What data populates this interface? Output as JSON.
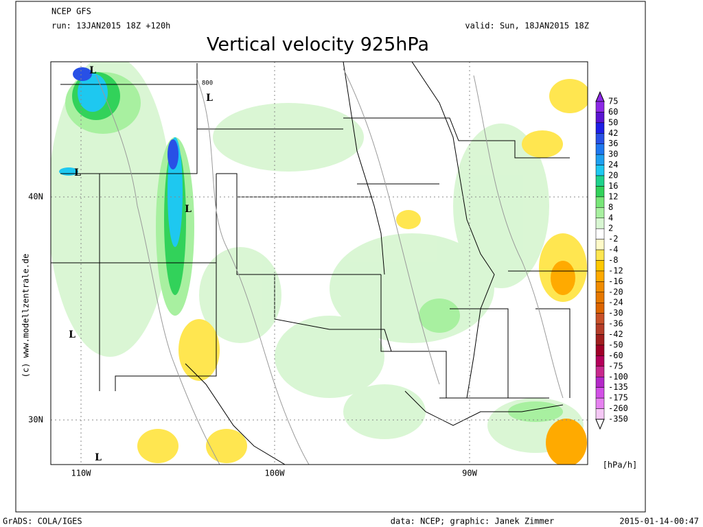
{
  "header": {
    "model": "NCEP GFS",
    "run": "run: 13JAN2015 18Z +120h",
    "valid": "valid: Sun, 18JAN2015 18Z",
    "title": "Vertical velocity 925hPa"
  },
  "map": {
    "lat_labels": [
      "40N",
      "30N"
    ],
    "lon_labels": [
      "110W",
      "100W",
      "90W"
    ],
    "low_markers": [
      "L",
      "L",
      "L",
      "L",
      "L",
      "L"
    ],
    "contour_label": "800",
    "credit": "(c) www.modellzentrale.de"
  },
  "colorbar": {
    "levels": [
      75,
      60,
      50,
      42,
      36,
      30,
      24,
      20,
      16,
      12,
      8,
      4,
      2,
      -2,
      -4,
      -8,
      -12,
      -16,
      -20,
      -24,
      -30,
      -36,
      -42,
      -50,
      -60,
      -75,
      -100,
      -135,
      -175,
      -260,
      -350
    ],
    "colors": [
      "#8c28e6",
      "#5a14d2",
      "#1e1ee6",
      "#2850e6",
      "#1e78f0",
      "#1ea0f0",
      "#1ec8f0",
      "#1ed28c",
      "#32d25a",
      "#78e678",
      "#a8f0a0",
      "#d8f6d2",
      "#ffffff",
      "#fffac8",
      "#ffe650",
      "#ffc800",
      "#ffaa00",
      "#f08c00",
      "#e67800",
      "#dc6400",
      "#c85028",
      "#b43c28",
      "#a01e1e",
      "#a00028",
      "#b4005a",
      "#c8288c",
      "#b428c8",
      "#d250e6",
      "#e682f0",
      "#f5c8f5"
    ],
    "unit": "[hPa/h]"
  },
  "footer": {
    "left": "GrADS: COLA/IGES",
    "center": "data: NCEP; graphic: Janek Zimmer",
    "right": "2015-01-14-00:47"
  }
}
